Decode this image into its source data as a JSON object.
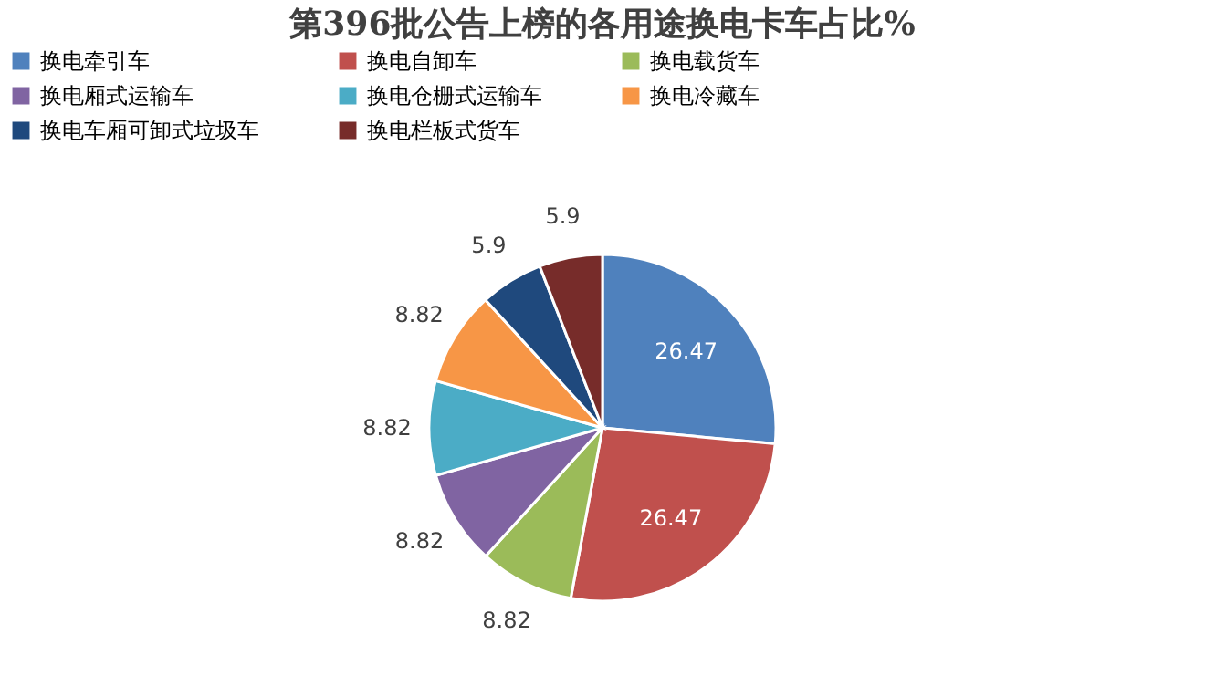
{
  "chart_data": {
    "type": "pie",
    "title": "第396批公告上榜的各用途换电卡车占比%",
    "categories": [
      "换电牵引车",
      "换电自卸车",
      "换电载货车",
      "换电厢式运输车",
      "换电仓栅式运输车",
      "换电冷藏车",
      "换电车厢可卸式垃圾车",
      "换电栏板式货车"
    ],
    "values": [
      26.47,
      26.47,
      8.82,
      8.82,
      8.82,
      8.82,
      5.9,
      5.9
    ],
    "colors": [
      "#4f81bd",
      "#c0504d",
      "#9bbb59",
      "#8064a2",
      "#4bacc6",
      "#f79646",
      "#1f497d",
      "#772c2a"
    ],
    "data_labels": true,
    "legend": "top"
  }
}
